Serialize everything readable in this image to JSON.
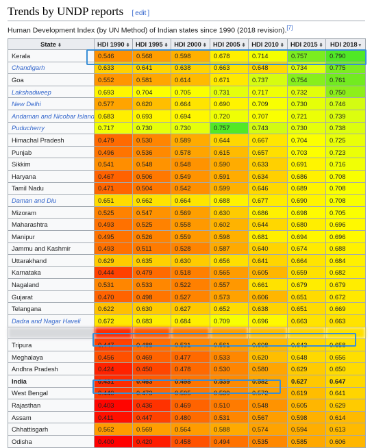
{
  "section": {
    "title": "Trends by UNDP reports",
    "edit_label": "edit"
  },
  "caption": {
    "text": "Human Development Index (by UN Method) of Indian states since 1990 (2018 revision).",
    "ref": "[7]"
  },
  "table": {
    "headers": [
      "State",
      "HDI 1990",
      "HDI 1995",
      "HDI 2000",
      "HDI 2005",
      "HDI 2010",
      "HDI 2015",
      "HDI 2018"
    ],
    "rows": [
      {
        "state": "Kerala",
        "link": false,
        "values": [
          "0.546",
          "0.568",
          "0.598",
          "0.678",
          "0.714",
          "0.757",
          "0.790"
        ],
        "colors": [
          "#ff9100",
          "#ff9e00",
          "#ffb000",
          "#fff000",
          "#f4ff00",
          "#7bed1f",
          "#50e826"
        ]
      },
      {
        "state": "Chandigarh",
        "link": true,
        "values": [
          "0.633",
          "0.641",
          "0.638",
          "0.663",
          "0.648",
          "0.734",
          "0.775"
        ],
        "colors": [
          "#ffd000",
          "#ffd500",
          "#ffd300",
          "#ffe300",
          "#ffd900",
          "#dfff0c",
          "#7bed1f"
        ]
      },
      {
        "state": "Goa",
        "link": false,
        "values": [
          "0.552",
          "0.581",
          "0.614",
          "0.671",
          "0.737",
          "0.754",
          "0.761"
        ],
        "colors": [
          "#ff9500",
          "#ffa600",
          "#ffba00",
          "#ffe900",
          "#d6fc10",
          "#87ef1c",
          "#72eb20"
        ]
      },
      {
        "state": "Lakshadweep",
        "link": true,
        "values": [
          "0.693",
          "0.704",
          "0.705",
          "0.731",
          "0.717",
          "0.732",
          "0.750"
        ],
        "colors": [
          "#fff600",
          "#fdff00",
          "#fbff00",
          "#e5ff0b",
          "#f0ff05",
          "#e2ff0a",
          "#8eef1a"
        ]
      },
      {
        "state": "New Delhi",
        "link": true,
        "values": [
          "0.577",
          "0.620",
          "0.664",
          "0.690",
          "0.709",
          "0.730",
          "0.746"
        ],
        "colors": [
          "#ffa400",
          "#ffbe00",
          "#ffe400",
          "#fff400",
          "#f8ff02",
          "#e5ff08",
          "#d3fc12"
        ]
      },
      {
        "state": "Andaman and Nicobar Islands",
        "link": true,
        "values": [
          "0.683",
          "0.693",
          "0.694",
          "0.720",
          "0.707",
          "0.721",
          "0.739"
        ],
        "colors": [
          "#ffef00",
          "#fff600",
          "#fff700",
          "#efff05",
          "#faff01",
          "#ecff06",
          "#dcfe0e"
        ]
      },
      {
        "state": "Puducherry",
        "link": true,
        "values": [
          "0.717",
          "0.730",
          "0.730",
          "0.757",
          "0.743",
          "0.730",
          "0.738"
        ],
        "colors": [
          "#f0ff05",
          "#e5ff0b",
          "#e5ff0b",
          "#52e826",
          "#d2fb12",
          "#e5ff0b",
          "#dcfe0e"
        ]
      },
      {
        "state": "Himachal Pradesh",
        "link": false,
        "values": [
          "0.479",
          "0.530",
          "0.589",
          "0.644",
          "0.667",
          "0.704",
          "0.725"
        ],
        "colors": [
          "#ff6a00",
          "#ff8500",
          "#ffab00",
          "#ffd700",
          "#ffe600",
          "#fcff00",
          "#e9ff08"
        ]
      },
      {
        "state": "Punjab",
        "link": false,
        "values": [
          "0.496",
          "0.536",
          "0.578",
          "0.615",
          "0.657",
          "0.703",
          "0.723"
        ],
        "colors": [
          "#ff7400",
          "#ff8900",
          "#ffa400",
          "#ffbb00",
          "#ffdf00",
          "#fdff00",
          "#ebff07"
        ]
      },
      {
        "state": "Sikkim",
        "link": false,
        "values": [
          "0.541",
          "0.548",
          "0.548",
          "0.590",
          "0.633",
          "0.691",
          "0.716"
        ],
        "colors": [
          "#ff8e00",
          "#ff9300",
          "#ff9300",
          "#ffac00",
          "#ffd000",
          "#fff500",
          "#f1ff05"
        ]
      },
      {
        "state": "Haryana",
        "link": false,
        "values": [
          "0.467",
          "0.506",
          "0.549",
          "0.591",
          "0.634",
          "0.686",
          "0.708"
        ],
        "colors": [
          "#ff6200",
          "#ff7800",
          "#ff9300",
          "#ffac00",
          "#ffd000",
          "#fff100",
          "#f9ff01"
        ]
      },
      {
        "state": "Tamil Nadu",
        "link": false,
        "values": [
          "0.471",
          "0.504",
          "0.542",
          "0.599",
          "0.646",
          "0.689",
          "0.708"
        ],
        "colors": [
          "#ff6500",
          "#ff7700",
          "#ff8f00",
          "#ffb100",
          "#ffd800",
          "#fff300",
          "#f9ff01"
        ]
      },
      {
        "state": "Daman and Diu",
        "link": true,
        "values": [
          "0.651",
          "0.662",
          "0.664",
          "0.688",
          "0.677",
          "0.690",
          "0.708"
        ],
        "colors": [
          "#ffdb00",
          "#ffe200",
          "#ffe400",
          "#fff200",
          "#ffec00",
          "#fff400",
          "#f9ff01"
        ]
      },
      {
        "state": "Mizoram",
        "link": false,
        "values": [
          "0.525",
          "0.547",
          "0.569",
          "0.630",
          "0.686",
          "0.698",
          "0.705"
        ],
        "colors": [
          "#ff8200",
          "#ff9200",
          "#ff9f00",
          "#ffcb00",
          "#fff100",
          "#fffb00",
          "#fbff00"
        ]
      },
      {
        "state": "Maharashtra",
        "link": false,
        "values": [
          "0.493",
          "0.525",
          "0.558",
          "0.602",
          "0.644",
          "0.680",
          "0.696"
        ],
        "colors": [
          "#ff7100",
          "#ff8200",
          "#ff9900",
          "#ffb300",
          "#ffd700",
          "#ffee00",
          "#fff900"
        ]
      },
      {
        "state": "Manipur",
        "link": false,
        "values": [
          "0.495",
          "0.526",
          "0.559",
          "0.598",
          "0.681",
          "0.694",
          "0.696"
        ],
        "colors": [
          "#ff7300",
          "#ff8300",
          "#ff9900",
          "#ffb100",
          "#ffef00",
          "#fff700",
          "#fff900"
        ]
      },
      {
        "state": "Jammu and Kashmir",
        "link": false,
        "values": [
          "0.493",
          "0.511",
          "0.528",
          "0.587",
          "0.640",
          "0.674",
          "0.688"
        ],
        "colors": [
          "#ff7100",
          "#ff7b00",
          "#ff8400",
          "#ffaa00",
          "#ffd400",
          "#ffeb00",
          "#fff200"
        ]
      },
      {
        "state": "Uttarakhand",
        "link": false,
        "values": [
          "0.629",
          "0.635",
          "0.630",
          "0.656",
          "0.641",
          "0.664",
          "0.684"
        ],
        "colors": [
          "#ffcb00",
          "#ffd000",
          "#ffcb00",
          "#ffdf00",
          "#ffd500",
          "#ffe400",
          "#fff000"
        ]
      },
      {
        "state": "Karnataka",
        "link": false,
        "values": [
          "0.444",
          "0.479",
          "0.518",
          "0.565",
          "0.605",
          "0.659",
          "0.682"
        ],
        "colors": [
          "#ff4000",
          "#ff6a00",
          "#ff7f00",
          "#ff9c00",
          "#ffb600",
          "#ffe100",
          "#ffef00"
        ]
      },
      {
        "state": "Nagaland",
        "link": false,
        "values": [
          "0.531",
          "0.533",
          "0.522",
          "0.557",
          "0.661",
          "0.679",
          "0.679"
        ],
        "colors": [
          "#ff8600",
          "#ff8700",
          "#ff8000",
          "#ff9800",
          "#ffe200",
          "#ffed00",
          "#ffed00"
        ]
      },
      {
        "state": "Gujarat",
        "link": false,
        "values": [
          "0.470",
          "0.498",
          "0.527",
          "0.573",
          "0.606",
          "0.651",
          "0.672"
        ],
        "colors": [
          "#ff6300",
          "#ff7500",
          "#ff8400",
          "#ffa200",
          "#ffb600",
          "#ffdb00",
          "#ffe900"
        ]
      },
      {
        "state": "Telangana",
        "link": false,
        "values": [
          "0.622",
          "0.630",
          "0.627",
          "0.652",
          "0.638",
          "0.651",
          "0.669"
        ],
        "colors": [
          "#ffc000",
          "#ffcb00",
          "#ffc800",
          "#ffdc00",
          "#ffd300",
          "#ffdb00",
          "#ffe800"
        ]
      },
      {
        "state": "Dadra and Nagar Haveli",
        "link": true,
        "values": [
          "0.672",
          "0.683",
          "0.684",
          "0.709",
          "0.696",
          "0.663",
          "0.663"
        ],
        "colors": [
          "#ffe900",
          "#fff000",
          "#fff000",
          "#f8ff02",
          "#fff900",
          "#ffe300",
          "#ffe300"
        ]
      },
      {
        "state": "",
        "blur": true,
        "values": [
          "",
          "",
          "",
          "",
          "",
          "",
          ""
        ],
        "colors": [
          "#ff2d00",
          "#ff5a00",
          "#ff7d00",
          "#ffa000",
          "#ffbd00",
          "#ffd300",
          "#ffe000"
        ]
      },
      {
        "state": "Tripura",
        "link": false,
        "values": [
          "0.447",
          "0.488",
          "0.531",
          "0.561",
          "0.608",
          "0.643",
          "0.658"
        ],
        "colors": [
          "#ff4200",
          "#ff6e00",
          "#ff8600",
          "#ff9b00",
          "#ffb800",
          "#ffd600",
          "#ffe000"
        ]
      },
      {
        "state": "Meghalaya",
        "link": false,
        "values": [
          "0.456",
          "0.469",
          "0.477",
          "0.533",
          "0.620",
          "0.648",
          "0.656"
        ],
        "colors": [
          "#ff5000",
          "#ff6300",
          "#ff6900",
          "#ff8700",
          "#ffbe00",
          "#ffd900",
          "#ffdf00"
        ]
      },
      {
        "state": "Andhra Pradesh",
        "link": false,
        "values": [
          "0.424",
          "0.450",
          "0.478",
          "0.530",
          "0.580",
          "0.629",
          "0.650"
        ],
        "colors": [
          "#ff2200",
          "#ff4600",
          "#ff6900",
          "#ff8500",
          "#ffa500",
          "#ffcb00",
          "#ffdb00"
        ]
      },
      {
        "state": "India",
        "bold": true,
        "link": false,
        "values": [
          "0.431",
          "0.463",
          "0.498",
          "0.539",
          "0.582",
          "0.627",
          "0.647"
        ],
        "colors": [
          "#ff2c00",
          "#ff5b00",
          "#ff7500",
          "#ff8a00",
          "#ffa600",
          "#ffc800",
          "#ffd900"
        ]
      },
      {
        "state": "West Bengal",
        "link": false,
        "values": [
          "0.440",
          "0.473",
          "0.505",
          "0.539",
          "0.572",
          "0.619",
          "0.641"
        ],
        "colors": [
          "#ff3a00",
          "#ff6600",
          "#ff7700",
          "#ff8a00",
          "#ffa100",
          "#ffbd00",
          "#ffd500"
        ]
      },
      {
        "state": "Rajasthan",
        "link": false,
        "values": [
          "0.403",
          "0.436",
          "0.469",
          "0.510",
          "0.548",
          "0.605",
          "0.629"
        ],
        "colors": [
          "#ff0500",
          "#ff3200",
          "#ff6300",
          "#ff7b00",
          "#ff9300",
          "#ffb600",
          "#ffcb00"
        ]
      },
      {
        "state": "Assam",
        "link": false,
        "values": [
          "0.411",
          "0.447",
          "0.480",
          "0.531",
          "0.567",
          "0.598",
          "0.614"
        ],
        "colors": [
          "#ff1000",
          "#ff4200",
          "#ff6b00",
          "#ff8600",
          "#ff9e00",
          "#ffb100",
          "#ffba00"
        ]
      },
      {
        "state": "Chhattisgarh",
        "link": false,
        "values": [
          "0.562",
          "0.569",
          "0.564",
          "0.588",
          "0.574",
          "0.594",
          "0.613"
        ],
        "colors": [
          "#ff9b00",
          "#ff9f00",
          "#ff9c00",
          "#ffaa00",
          "#ffa300",
          "#ffae00",
          "#ffba00"
        ]
      },
      {
        "state": "Odisha",
        "link": false,
        "values": [
          "0.400",
          "0.420",
          "0.458",
          "0.494",
          "0.535",
          "0.585",
          "0.606"
        ],
        "colors": [
          "#ff0000",
          "#ff1c00",
          "#ff5200",
          "#ff7200",
          "#ff8800",
          "#ffa800",
          "#ffb600"
        ]
      }
    ]
  }
}
